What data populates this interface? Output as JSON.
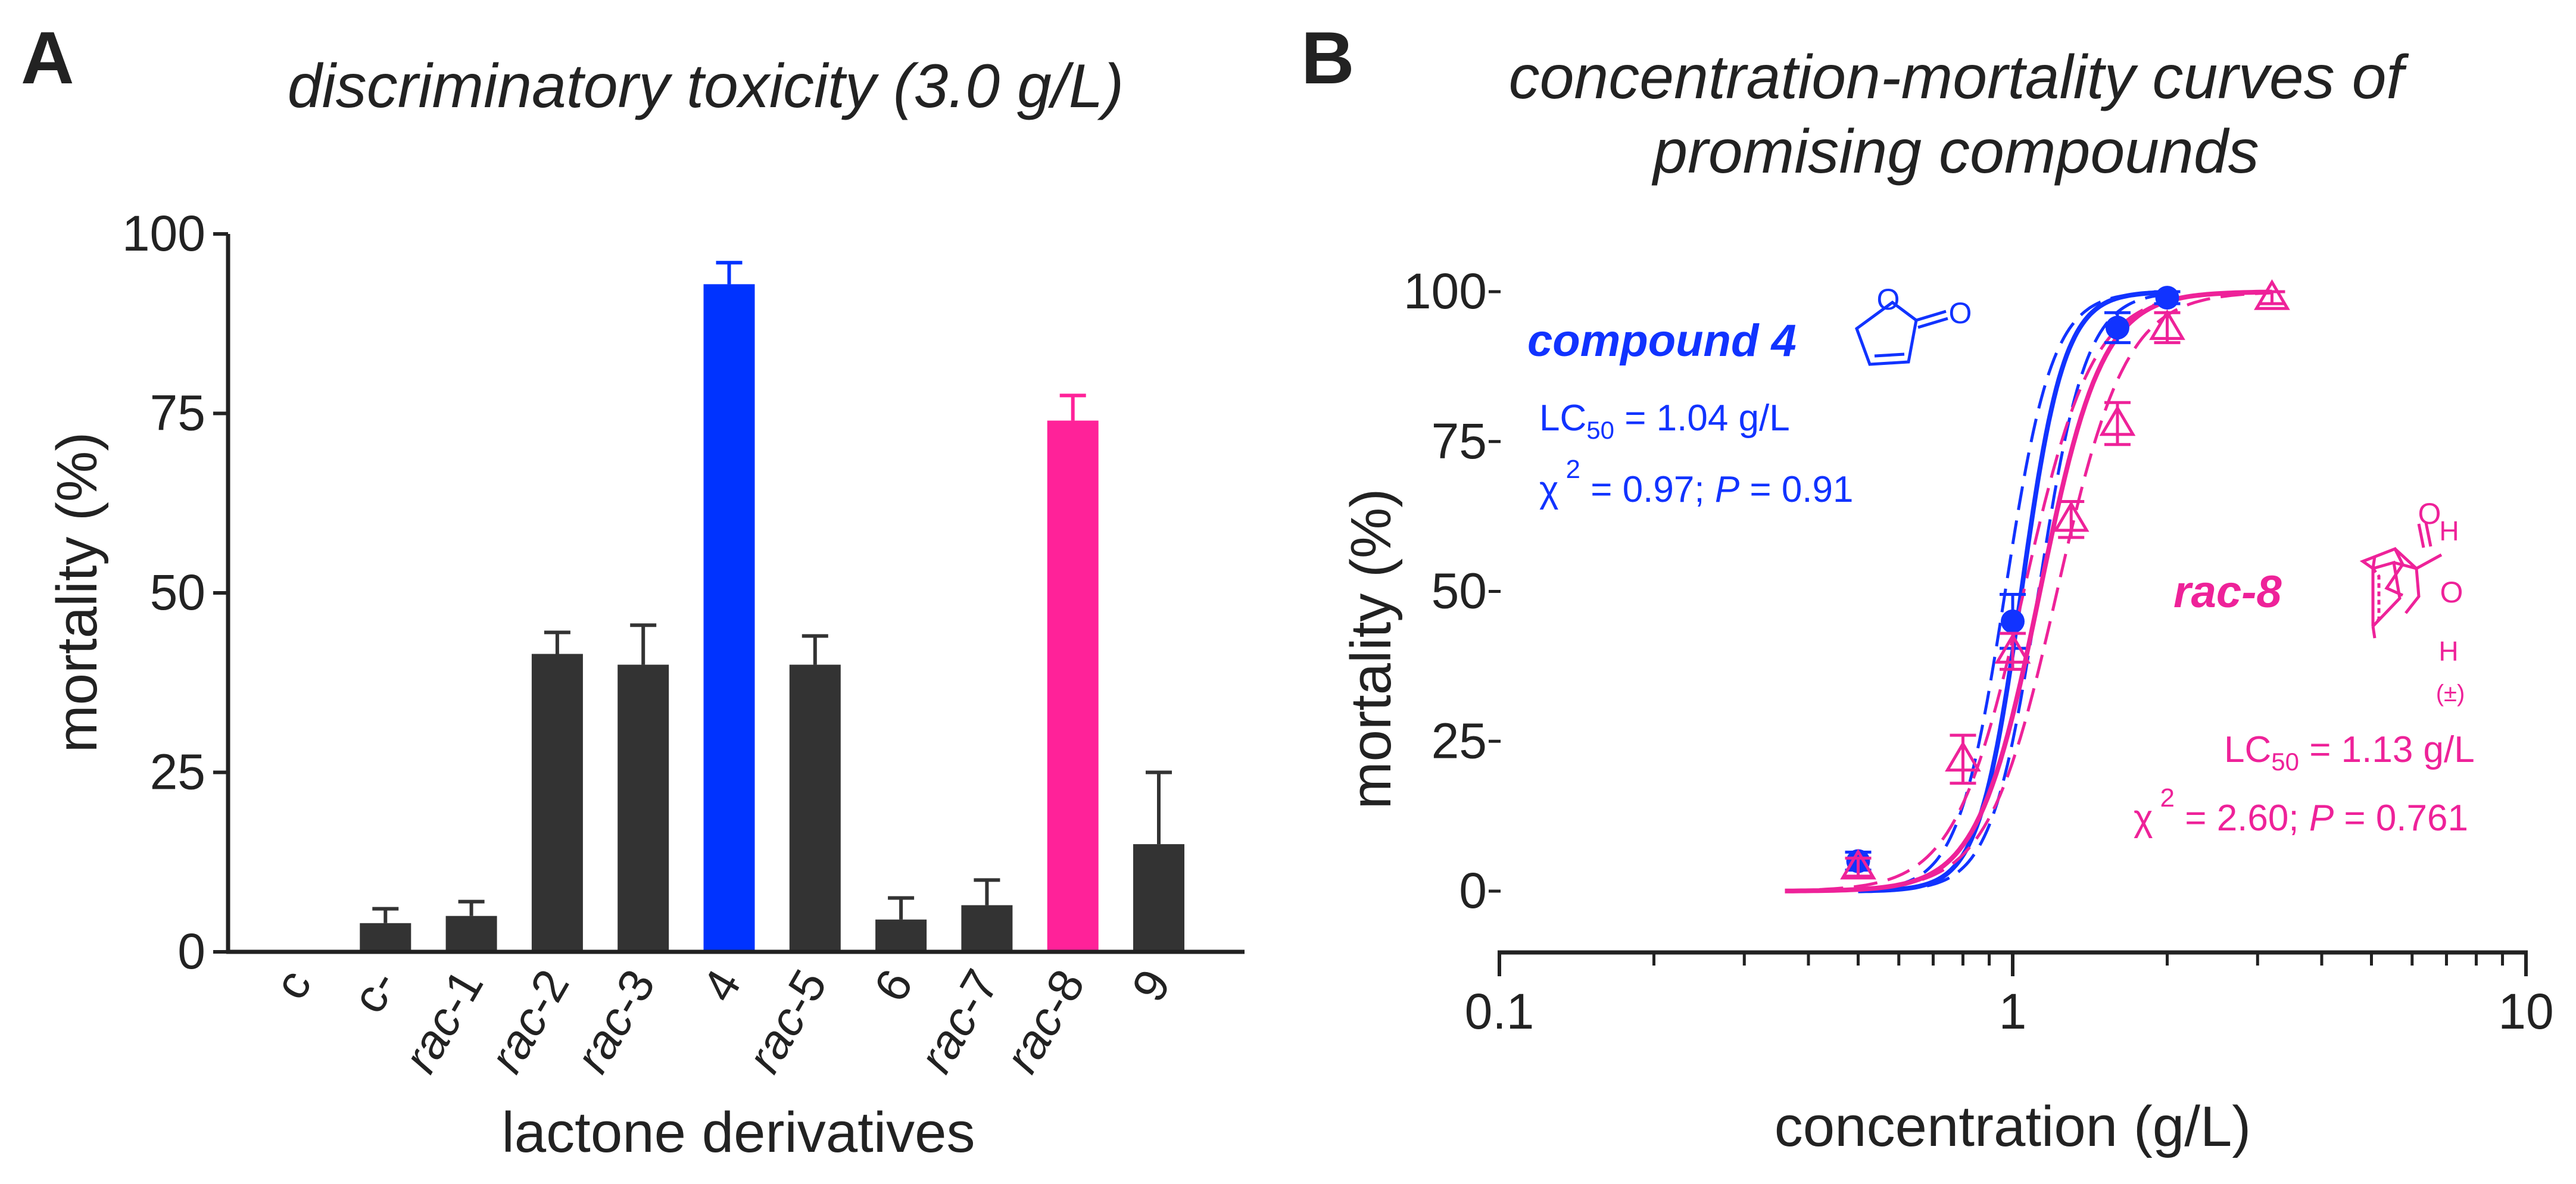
{
  "panel_a": {
    "label": "A",
    "chart_data": {
      "type": "bar",
      "title": "discriminatory toxicity (3.0 g/L)",
      "xlabel": "lactone derivatives",
      "ylabel": "mortality (%)",
      "ylim": [
        0,
        100
      ],
      "yticks": [
        "0",
        "25",
        "50",
        "75",
        "100"
      ],
      "categories": [
        "c",
        "c-",
        "rac-1",
        "rac-2",
        "rac-3",
        "4",
        "rac-5",
        "6",
        "rac-7",
        "rac-8",
        "9"
      ],
      "italic_prefix": [
        "",
        "",
        "rac",
        "rac",
        "rac",
        "",
        "rac",
        "",
        "rac",
        "rac",
        ""
      ],
      "category_suffix": [
        "c",
        "c-",
        "-1",
        "-2",
        "-3",
        "4",
        "-5",
        "6",
        "-7",
        "-8",
        "9"
      ],
      "values": [
        0,
        4,
        5,
        41.5,
        40,
        93,
        40,
        4.5,
        6.5,
        74,
        15
      ],
      "errors": [
        0,
        2,
        2,
        3,
        5.5,
        3,
        4,
        3,
        3.5,
        3.5,
        10
      ],
      "colors": [
        "#333333",
        "#333333",
        "#333333",
        "#333333",
        "#333333",
        "#0033ff",
        "#333333",
        "#333333",
        "#333333",
        "#ff2299",
        "#333333"
      ]
    }
  },
  "panel_b": {
    "label": "B",
    "chart_data": {
      "type": "scatter",
      "title": [
        "concentration-mortality curves of",
        "promising compounds"
      ],
      "xlabel": "concentration (g/L)",
      "ylabel": "mortality (%)",
      "xscale": "log",
      "xlim": [
        0.1,
        10
      ],
      "ylim": [
        -10,
        100
      ],
      "xticks": [
        "0.1",
        "1",
        "10"
      ],
      "yticks": [
        "0",
        "25",
        "50",
        "75",
        "100"
      ],
      "series": [
        {
          "name": "compound 4",
          "color": "#1133ff",
          "marker": "circle",
          "x": [
            0.5,
            1.0,
            1.6,
            2.0
          ],
          "y": [
            5,
            45,
            94,
            99
          ],
          "err": [
            1.5,
            4.5,
            2.5,
            1
          ],
          "lc50": 1.04,
          "slope": 10.5,
          "fit_range": [
            0.5,
            2.0
          ],
          "label": "compound 4",
          "lc_label": "LC",
          "lc_sub": "50",
          "lc_value": " = 1.04 g/L",
          "chi_symbol": "χ",
          "chi_sup": "2",
          "stat_chi": " = 0.97; ",
          "stat_p_label": "P",
          "stat_p": " = 0.91"
        },
        {
          "name": "rac-8",
          "color": "#ee2299",
          "marker": "triangle",
          "x": [
            0.5,
            0.8,
            1.0,
            1.3,
            1.6,
            2.0,
            3.2
          ],
          "y": [
            4,
            22,
            40,
            62,
            78,
            94,
            99
          ],
          "err": [
            1.5,
            4,
            3,
            3,
            3.5,
            2.5,
            1
          ],
          "lc50": 1.13,
          "slope": 7.2,
          "fit_range": [
            0.36,
            3.2
          ],
          "label": "rac-8",
          "lc_label": "LC",
          "lc_sub": "50",
          "lc_value": " = 1.13 g/L",
          "chi_symbol": "χ",
          "chi_sup": "2",
          "stat_chi": " = 2.60; ",
          "stat_p_label": "P",
          "stat_p": " = 0.761"
        }
      ],
      "structure_labels": {
        "ring_o": "O",
        "carbonyl_o": "O",
        "h_top": "H",
        "h_bottom": "H",
        "racemic": "(±)"
      }
    }
  }
}
